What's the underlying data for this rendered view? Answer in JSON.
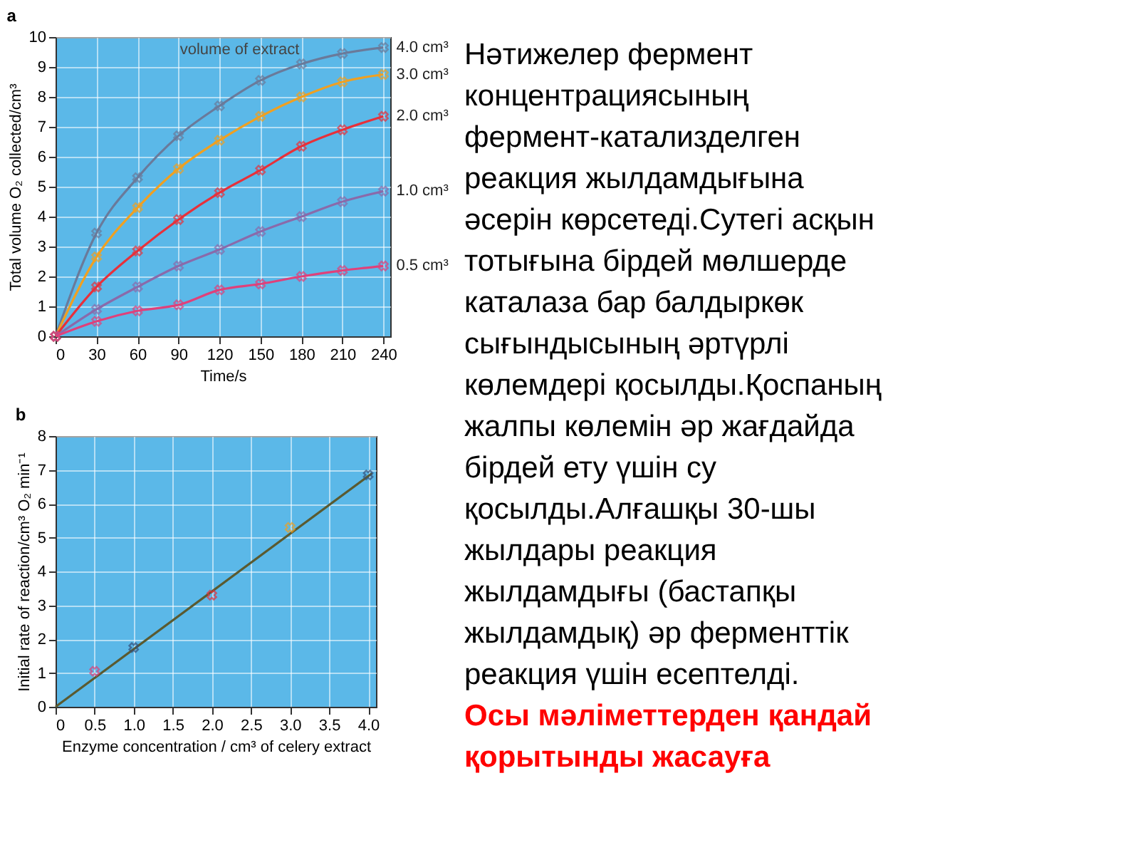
{
  "chart_data": [
    {
      "type": "line",
      "title": "a",
      "xlabel": "Time/s",
      "ylabel": "Total volume O₂ collected/cm³",
      "legend_title": "volume of extract",
      "x": [
        0,
        30,
        60,
        90,
        120,
        150,
        180,
        210,
        240
      ],
      "xlim": [
        0,
        245
      ],
      "xticks": [
        0,
        30,
        60,
        90,
        120,
        150,
        180,
        210,
        240
      ],
      "ylim": [
        0,
        10
      ],
      "yticks": [
        0,
        1,
        2,
        3,
        4,
        5,
        6,
        7,
        8,
        9,
        10
      ],
      "grid": true,
      "legend": false,
      "marker": "cross",
      "series": [
        {
          "name": "4.0 cm³",
          "color": "#6a7a9a",
          "values": [
            0,
            3.45,
            5.3,
            6.7,
            7.7,
            8.55,
            9.1,
            9.45,
            9.65
          ]
        },
        {
          "name": "3.0 cm³",
          "color": "#f0a020",
          "values": [
            0,
            2.65,
            4.3,
            5.6,
            6.55,
            7.35,
            8.0,
            8.5,
            8.75
          ]
        },
        {
          "name": "2.0 cm³",
          "color": "#e8303a",
          "values": [
            0,
            1.65,
            2.85,
            3.9,
            4.8,
            5.55,
            6.35,
            6.9,
            7.35
          ]
        },
        {
          "name": "1.0 cm³",
          "color": "#8a6aaa",
          "values": [
            0,
            0.9,
            1.65,
            2.35,
            2.9,
            3.5,
            4.0,
            4.5,
            4.85
          ]
        },
        {
          "name": "0.5 cm³",
          "color": "#e0407a",
          "values": [
            0,
            0.5,
            0.85,
            1.05,
            1.55,
            1.75,
            2.0,
            2.2,
            2.35
          ]
        }
      ]
    },
    {
      "type": "scatter",
      "title": "b",
      "xlabel": "Enzyme concentration / cm³ of celery extract",
      "ylabel": "Initial rate of reaction/cm³ O₂ min⁻¹",
      "xlim": [
        0,
        4.1
      ],
      "xticks": [
        {
          "value": 0,
          "label": "0"
        },
        0.5,
        {
          "value": 1,
          "label": "1.0"
        },
        1.5,
        {
          "value": 2,
          "label": "2.0"
        },
        2.5,
        {
          "value": 3,
          "label": "3.0"
        },
        3.5,
        {
          "value": 4,
          "label": "4.0"
        }
      ],
      "ylim": [
        0,
        8
      ],
      "yticks": [
        0,
        1,
        2,
        3,
        4,
        5,
        6,
        7,
        8
      ],
      "grid": true,
      "legend": false,
      "marker": "cross",
      "series": [
        {
          "type": "line",
          "x": [
            0,
            4.05
          ],
          "values": [
            0,
            6.9
          ],
          "color": "#5a5a30",
          "marker": "none"
        },
        {
          "type": "scatter",
          "x": [
            0.5,
            1.0,
            2.0,
            3.0,
            4.0
          ],
          "values": [
            1.05,
            1.75,
            3.3,
            5.3,
            6.85
          ],
          "colors": [
            "#e0407a",
            "#34507a",
            "#e8303a",
            "#f0a020",
            "#34507a"
          ]
        }
      ]
    },
    {
      "type": "other",
      "annotations": [
        "Нәтижелер фермент\nконцентрациясының\nфермент-катализделген\nреакция жылдамдығына\nәсерін көрсетеді.Сутегі асқын\nтотығына бірдей мөлшерде\nкаталаза бар балдыркөк\nсығындысының әртүрлі\nкөлемдері қосылды.Қоспаның\nжалпы көлемін әр жағдайда\nбірдей ету үшін су\nқосылды.Алғашқы 30-шы\nжылдары реакция\nжылдамдығы (бастапқы\nжылдамдық) әр ферменттік\nреакция үшін есептелді.",
        "Осы мәліметтерден қандай\nқорытынды жасауға"
      ]
    }
  ]
}
